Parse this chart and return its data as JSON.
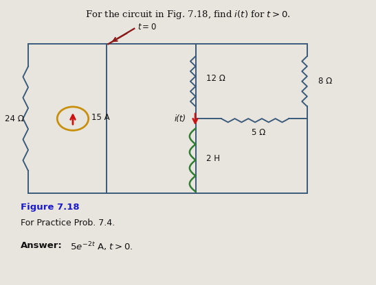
{
  "title": "For the circuit in Fig. 7.18, find $i(t)$ for $t > 0$.",
  "figure_label": "Figure 7.18",
  "figure_caption": "For Practice Prob. 7.4.",
  "answer_bold": "Answer:",
  "answer_math": " $5e^{-2t}$ A, $t > 0$.",
  "bg_color": "#e8e4de",
  "circuit_line_color": "#3a5a7a",
  "black_color": "#111111",
  "switch_color": "#8b1a1a",
  "inductor_color": "#2e7d32",
  "resistor_color": "#3a5a7a",
  "current_source_color": "#c8900a",
  "figure_label_color": "#1a1acc",
  "switch_label": "$t=0$",
  "r1_label": "24 Ω",
  "r2_label": "12 Ω",
  "r3_label": "8 Ω",
  "r4_label": "5 Ω",
  "inductor_label": "2 H",
  "cs_label": "15 A",
  "i_label": "i(t)"
}
